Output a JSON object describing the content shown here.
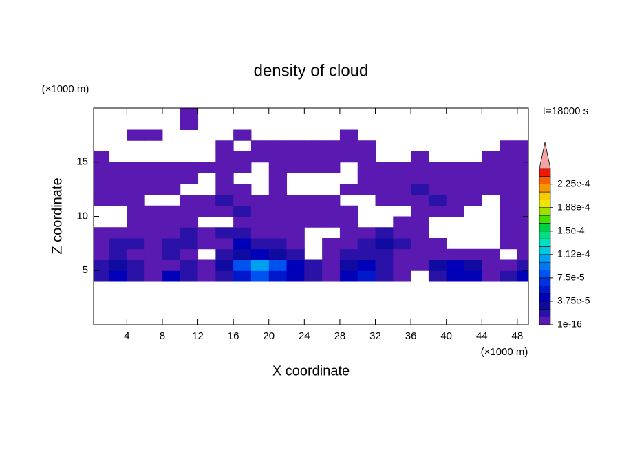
{
  "chart_data": {
    "type": "contour",
    "title": "density of cloud",
    "xlabel": "X coordinate",
    "ylabel": "Z coordinate",
    "x_unit": "(×1000 m)",
    "y_unit": "(×1000 m)",
    "annotation": "t=18000 s",
    "xlim": [
      0.25,
      49.25
    ],
    "ylim": [
      0,
      20
    ],
    "xticks": [
      4,
      8,
      12,
      16,
      20,
      24,
      28,
      32,
      36,
      40,
      44,
      48
    ],
    "yticks": [
      5,
      10,
      15
    ],
    "grid": {
      "x": [
        0,
        2,
        4,
        6,
        8,
        10,
        12,
        14,
        16,
        18,
        20,
        22,
        24,
        26,
        28,
        30,
        32,
        34,
        36,
        38,
        40,
        42,
        44,
        46,
        48,
        50
      ],
      "z": [
        4,
        5,
        6,
        7,
        8,
        9,
        10,
        11,
        12,
        13,
        14,
        15,
        16,
        17,
        18,
        19,
        20
      ],
      "values": [
        [
          2e-05,
          4.5e-05,
          2e-05,
          5e-06,
          4.5e-05,
          2e-05,
          5e-06,
          2e-05,
          6e-05,
          8e-05,
          6e-05,
          4.5e-05,
          2e-05,
          5e-06,
          4.5e-05,
          6e-05,
          2e-05,
          5e-06,
          0,
          2e-05,
          4.5e-05,
          4.5e-05,
          5e-06,
          2e-05,
          4.5e-05
        ],
        [
          2e-05,
          3e-05,
          2e-05,
          5e-06,
          5e-06,
          2e-05,
          5e-06,
          3e-05,
          8e-05,
          0.0001,
          8e-05,
          4.5e-05,
          2e-05,
          5e-06,
          3e-05,
          4.5e-05,
          2e-05,
          5e-06,
          5e-06,
          3e-05,
          4.5e-05,
          3e-05,
          5e-06,
          5e-06,
          2e-05
        ],
        [
          5e-06,
          2e-05,
          5e-06,
          5e-06,
          2e-05,
          5e-06,
          0,
          2e-05,
          3e-05,
          4.5e-05,
          3e-05,
          2e-05,
          0,
          5e-06,
          2e-05,
          2e-05,
          2e-05,
          5e-06,
          5e-06,
          5e-06,
          5e-06,
          5e-06,
          5e-06,
          0,
          5e-06
        ],
        [
          5e-06,
          2e-05,
          2e-05,
          5e-06,
          2e-05,
          2e-05,
          5e-06,
          5e-06,
          4.5e-05,
          2e-05,
          2e-05,
          5e-06,
          0,
          5e-06,
          5e-06,
          2e-05,
          3e-05,
          2e-05,
          5e-06,
          5e-06,
          0,
          0,
          0,
          5e-06,
          5e-06
        ],
        [
          5e-06,
          5e-06,
          5e-06,
          5e-06,
          5e-06,
          2e-05,
          5e-06,
          2e-05,
          2e-05,
          5e-06,
          5e-06,
          5e-06,
          0,
          0,
          5e-06,
          5e-06,
          2e-05,
          5e-06,
          5e-06,
          0,
          0,
          0,
          0,
          5e-06,
          5e-06
        ],
        [
          0,
          0,
          5e-06,
          5e-06,
          5e-06,
          5e-06,
          0,
          0,
          5e-06,
          5e-06,
          5e-06,
          5e-06,
          5e-06,
          5e-06,
          5e-06,
          0,
          0,
          5e-06,
          5e-06,
          0,
          0,
          0,
          0,
          5e-06,
          5e-06
        ],
        [
          0,
          0,
          5e-06,
          5e-06,
          5e-06,
          5e-06,
          5e-06,
          5e-06,
          2e-05,
          5e-06,
          5e-06,
          5e-06,
          5e-06,
          5e-06,
          5e-06,
          0,
          0,
          0,
          5e-06,
          5e-06,
          5e-06,
          0,
          0,
          5e-06,
          5e-06
        ],
        [
          5e-06,
          5e-06,
          5e-06,
          0,
          0,
          5e-06,
          5e-06,
          2e-05,
          5e-06,
          5e-06,
          5e-06,
          5e-06,
          5e-06,
          5e-06,
          0,
          0,
          5e-06,
          5e-06,
          5e-06,
          2e-05,
          5e-06,
          5e-06,
          0,
          5e-06,
          5e-06
        ],
        [
          5e-06,
          5e-06,
          5e-06,
          5e-06,
          5e-06,
          0,
          0,
          5e-06,
          5e-06,
          0,
          5e-06,
          0,
          0,
          0,
          5e-06,
          5e-06,
          5e-06,
          5e-06,
          2e-05,
          5e-06,
          5e-06,
          5e-06,
          5e-06,
          5e-06,
          5e-06
        ],
        [
          5e-06,
          5e-06,
          5e-06,
          5e-06,
          5e-06,
          5e-06,
          0,
          5e-06,
          0,
          0,
          5e-06,
          0,
          0,
          0,
          0,
          5e-06,
          5e-06,
          5e-06,
          5e-06,
          5e-06,
          5e-06,
          5e-06,
          5e-06,
          5e-06,
          5e-06
        ],
        [
          5e-06,
          5e-06,
          5e-06,
          5e-06,
          5e-06,
          5e-06,
          5e-06,
          5e-06,
          5e-06,
          0,
          5e-06,
          5e-06,
          5e-06,
          5e-06,
          0,
          5e-06,
          5e-06,
          5e-06,
          5e-06,
          5e-06,
          5e-06,
          5e-06,
          5e-06,
          5e-06,
          5e-06
        ],
        [
          5e-06,
          0,
          0,
          0,
          0,
          0,
          0,
          5e-06,
          5e-06,
          5e-06,
          5e-06,
          5e-06,
          5e-06,
          5e-06,
          5e-06,
          5e-06,
          0,
          0,
          5e-06,
          0,
          0,
          0,
          5e-06,
          5e-06,
          5e-06
        ],
        [
          0,
          0,
          0,
          0,
          0,
          0,
          0,
          5e-06,
          0,
          5e-06,
          5e-06,
          5e-06,
          5e-06,
          5e-06,
          5e-06,
          5e-06,
          0,
          0,
          0,
          0,
          0,
          0,
          0,
          5e-06,
          5e-06
        ],
        [
          0,
          0,
          5e-06,
          5e-06,
          0,
          0,
          0,
          0,
          5e-06,
          0,
          0,
          0,
          0,
          0,
          5e-06,
          0,
          0,
          0,
          0,
          0,
          0,
          0,
          0,
          0,
          0
        ],
        [
          0,
          0,
          0,
          0,
          0,
          5e-06,
          0,
          0,
          0,
          0,
          0,
          0,
          0,
          0,
          0,
          0,
          0,
          0,
          0,
          0,
          0,
          0,
          0,
          0,
          0
        ],
        [
          0,
          0,
          0,
          0,
          0,
          5e-06,
          0,
          0,
          0,
          0,
          0,
          0,
          0,
          0,
          0,
          0,
          0,
          0,
          0,
          0,
          0,
          0,
          0,
          0,
          0
        ]
      ]
    },
    "colorbar": {
      "levels": [
        1e-16,
        1.25e-05,
        2.5e-05,
        3.75e-05,
        5e-05,
        6.25e-05,
        7.5e-05,
        8.75e-05,
        0.0001,
        0.0001125,
        0.000125,
        0.0001375,
        0.00015,
        0.0001625,
        0.000175,
        0.0001875,
        0.0002,
        0.0002125,
        0.000225,
        0.0002375,
        0.00025
      ],
      "colors": [
        "#5a19b0",
        "#2a12a8",
        "#0f0aa0",
        "#0000b8",
        "#0018cc",
        "#0032e0",
        "#0052f0",
        "#0078f0",
        "#00a0f0",
        "#00c8e0",
        "#00e0c0",
        "#00e080",
        "#00d040",
        "#40e000",
        "#a0e000",
        "#e8e800",
        "#f8c800",
        "#f89800",
        "#f86000",
        "#f01800"
      ],
      "extend_color": "#f4a4a4",
      "ticks": [
        {
          "value": 1e-16,
          "label": "1e-16"
        },
        {
          "value": 3.75e-05,
          "label": "3.75e-5"
        },
        {
          "value": 7.5e-05,
          "label": "7.5e-5"
        },
        {
          "value": 0.0001125,
          "label": "1.12e-4"
        },
        {
          "value": 0.00015,
          "label": "1.5e-4"
        },
        {
          "value": 0.0001875,
          "label": "1.88e-4"
        },
        {
          "value": 0.000225,
          "label": "2.25e-4"
        }
      ]
    }
  }
}
